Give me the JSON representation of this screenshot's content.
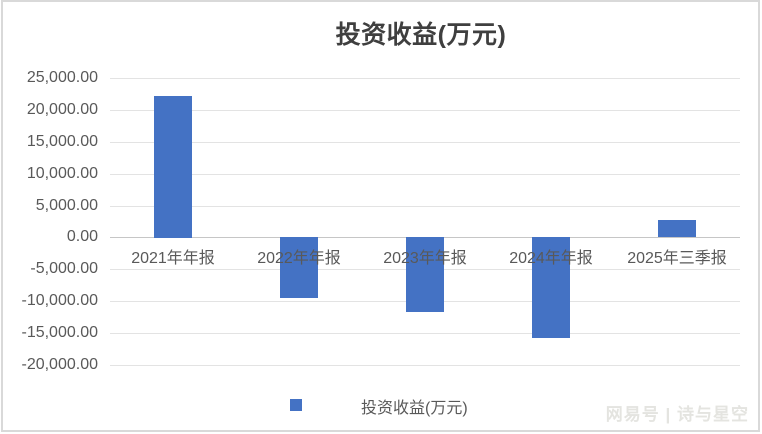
{
  "title": "投资收益(万元)",
  "chart_data": {
    "type": "bar",
    "title": "投资收益(万元)",
    "categories": [
      "2021年年报",
      "2022年年报",
      "2023年年报",
      "2024年年报",
      "2025年三季报"
    ],
    "series": [
      {
        "name": "投资收益(万元)",
        "values": [
          22200,
          -9600,
          -11800,
          -15900,
          2700
        ]
      }
    ],
    "xlabel": "",
    "ylabel": "",
    "ylim": [
      -20000,
      25000
    ],
    "ytick_step": 5000,
    "yticks": [
      {
        "value": 25000,
        "label": "25,000.00"
      },
      {
        "value": 20000,
        "label": "20,000.00"
      },
      {
        "value": 15000,
        "label": "15,000.00"
      },
      {
        "value": 10000,
        "label": "10,000.00"
      },
      {
        "value": 5000,
        "label": "5,000.00"
      },
      {
        "value": 0,
        "label": "0.00"
      },
      {
        "value": -5000,
        "label": "-5,000.00"
      },
      {
        "value": -10000,
        "label": "-10,000.00"
      },
      {
        "value": -15000,
        "label": "-15,000.00"
      },
      {
        "value": -20000,
        "label": "-20,000.00"
      }
    ],
    "grid": true,
    "legend_position": "bottom",
    "colors": {
      "bar": "#4472C4",
      "gridline": "#E3E3E3",
      "axis_line": "#C6C6C6",
      "tick_text": "#595959",
      "title_text": "#3F3F3F"
    }
  },
  "legend": {
    "label": "投资收益(万元)",
    "marker_color": "#4472C4"
  },
  "watermark": {
    "text": "网易号 | 诗与星空"
  }
}
